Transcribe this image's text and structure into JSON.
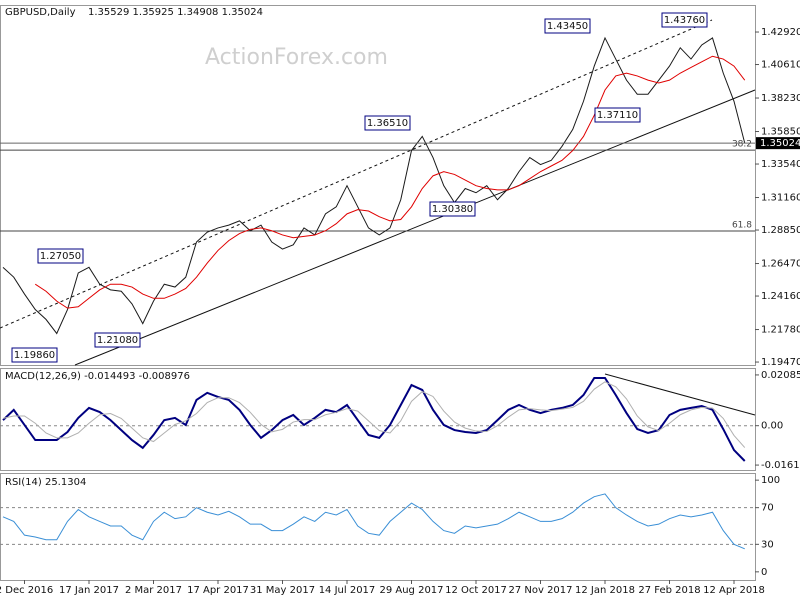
{
  "watermark": "ActionForex.com",
  "chart_data": [
    {
      "type": "line",
      "title": "GBPUSD,Daily",
      "subtitle": "1.35529 1.35925 1.34908 1.35024",
      "ylim": [
        1.1926,
        1.4484
      ],
      "yticks": [
        {
          "value": 1.4292,
          "label": "1.42920"
        },
        {
          "value": 1.4061,
          "label": "1.40610"
        },
        {
          "value": 1.3823,
          "label": "1.38230"
        },
        {
          "value": 1.3585,
          "label": "1.35850"
        },
        {
          "value": 1.3354,
          "label": "1.33540"
        },
        {
          "value": 1.3116,
          "label": "1.31160"
        },
        {
          "value": 1.2885,
          "label": "1.28850"
        },
        {
          "value": 1.2647,
          "label": "1.26470"
        },
        {
          "value": 1.2416,
          "label": "1.24160"
        },
        {
          "value": 1.2178,
          "label": "1.21780"
        },
        {
          "value": 1.1947,
          "label": "1.19470"
        }
      ],
      "series": [
        {
          "color": "#1a1a1a",
          "values": [
            1.262,
            1.255,
            1.243,
            1.232,
            1.225,
            1.215,
            1.232,
            1.258,
            1.262,
            1.25,
            1.246,
            1.245,
            1.236,
            1.222,
            1.238,
            1.25,
            1.248,
            1.255,
            1.28,
            1.287,
            1.29,
            1.292,
            1.295,
            1.288,
            1.292,
            1.28,
            1.275,
            1.278,
            1.29,
            1.285,
            1.3,
            1.305,
            1.32,
            1.305,
            1.29,
            1.285,
            1.29,
            1.31,
            1.345,
            1.355,
            1.34,
            1.32,
            1.308,
            1.318,
            1.315,
            1.32,
            1.31,
            1.318,
            1.33,
            1.34,
            1.335,
            1.338,
            1.348,
            1.36,
            1.38,
            1.405,
            1.425,
            1.41,
            1.395,
            1.385,
            1.385,
            1.395,
            1.405,
            1.418,
            1.41,
            1.42,
            1.425,
            1.4,
            1.38,
            1.35024
          ]
        },
        {
          "color": "#e00000",
          "values": [
            null,
            null,
            null,
            1.25,
            1.245,
            1.238,
            1.233,
            1.234,
            1.24,
            1.246,
            1.25,
            1.25,
            1.248,
            1.243,
            1.24,
            1.24,
            1.243,
            1.247,
            1.255,
            1.265,
            1.274,
            1.281,
            1.286,
            1.289,
            1.29,
            1.288,
            1.285,
            1.283,
            1.284,
            1.285,
            1.288,
            1.293,
            1.3,
            1.303,
            1.302,
            1.298,
            1.295,
            1.296,
            1.305,
            1.318,
            1.327,
            1.33,
            1.328,
            1.324,
            1.32,
            1.318,
            1.317,
            1.317,
            1.32,
            1.325,
            1.33,
            1.334,
            1.338,
            1.345,
            1.355,
            1.37,
            1.388,
            1.398,
            1.4,
            1.398,
            1.395,
            1.393,
            1.395,
            1.4,
            1.404,
            1.408,
            1.412,
            1.41,
            1.405,
            1.395
          ]
        }
      ],
      "levels": [
        {
          "value": 1.3453,
          "label": "38.2"
        },
        {
          "value": 1.2878,
          "label": "61.8"
        }
      ],
      "last_price": {
        "value": 1.35024,
        "label": "1.35024"
      },
      "annotations": [
        "1.19860",
        "1.27050",
        "1.21080",
        "1.36510",
        "1.30380",
        "1.43450",
        "1.37110",
        "1.43760"
      ]
    },
    {
      "type": "line",
      "title": "MACD(12,26,9) -0.014493 -0.008976",
      "ylim": [
        -0.0182,
        0.0237
      ],
      "yticks": [
        0.020852,
        {
          "value": 0,
          "label": "0.00"
        },
        -0.016176
      ],
      "grid_levels": [
        0
      ],
      "series": [
        {
          "color": "#000080",
          "values": [
            0.0023,
            0.0065,
            0.0003,
            -0.0059,
            -0.0059,
            -0.0059,
            -0.0026,
            0.0032,
            0.0073,
            0.0056,
            0.0023,
            -0.0018,
            -0.0059,
            -0.0091,
            -0.0038,
            0.0023,
            0.0032,
            0.0003,
            0.0106,
            0.0135,
            0.0118,
            0.0106,
            0.0065,
            0.0003,
            -0.005,
            -0.0018,
            0.0023,
            0.0044,
            0.0003,
            0.0032,
            0.0065,
            0.0056,
            0.0085,
            0.0023,
            -0.0038,
            -0.005,
            0.0003,
            0.0085,
            0.0167,
            0.0147,
            0.0065,
            0.0003,
            -0.0018,
            -0.0026,
            -0.003,
            -0.0018,
            0.0023,
            0.0065,
            0.0085,
            0.0065,
            0.0052,
            0.0065,
            0.0073,
            0.0085,
            0.0126,
            0.0196,
            0.0196,
            0.0126,
            0.0052,
            -0.0014,
            -0.003,
            -0.0018,
            0.0044,
            0.0065,
            0.0073,
            0.0081,
            0.0065,
            -0.0014,
            -0.01,
            -0.0145
          ]
        },
        {
          "color": "#b0b0b0",
          "values": [
            0.003,
            0.004,
            0.004,
            0.001,
            -0.003,
            -0.005,
            -0.005,
            -0.003,
            0.001,
            0.0045,
            0.005,
            0.003,
            -0.001,
            -0.005,
            -0.0065,
            -0.003,
            0.0005,
            0.002,
            0.005,
            0.0095,
            0.0115,
            0.0115,
            0.0095,
            0.0055,
            0.0005,
            -0.0025,
            -0.0015,
            0.0015,
            0.0025,
            0.0025,
            0.0045,
            0.0055,
            0.007,
            0.006,
            0.002,
            -0.002,
            -0.003,
            0.002,
            0.01,
            0.014,
            0.012,
            0.006,
            0.0015,
            -0.001,
            -0.0022,
            -0.0024,
            0.0,
            0.0035,
            0.0065,
            0.007,
            0.0065,
            0.0062,
            0.0068,
            0.0075,
            0.01,
            0.015,
            0.018,
            0.016,
            0.011,
            0.004,
            -0.0005,
            -0.002,
            0.001,
            0.0045,
            0.0065,
            0.0075,
            0.0072,
            0.003,
            -0.004,
            -0.009
          ]
        }
      ]
    },
    {
      "type": "line",
      "title": "RSI(14) 25.1304",
      "ylim": [
        -8.9,
        107.8
      ],
      "yticks": [
        100,
        70,
        30,
        0
      ],
      "grid_levels": [
        70,
        30
      ],
      "categories": [
        null,
        null,
        "2 Dec 2016",
        null,
        null,
        null,
        null,
        null,
        "17 Jan 2017",
        null,
        null,
        null,
        null,
        null,
        "2 Mar 2017",
        null,
        null,
        null,
        null,
        null,
        "17 Apr 2017",
        null,
        null,
        null,
        null,
        null,
        "31 May 2017",
        null,
        null,
        null,
        null,
        null,
        "14 Jul 2017",
        null,
        null,
        null,
        null,
        null,
        "29 Aug 2017",
        null,
        null,
        null,
        null,
        null,
        "12 Oct 2017",
        null,
        null,
        null,
        null,
        null,
        "27 Nov 2017",
        null,
        null,
        null,
        null,
        null,
        "12 Jan 2018",
        null,
        null,
        null,
        null,
        null,
        "27 Feb 2018",
        null,
        null,
        null,
        null,
        null,
        "12 Apr 2018",
        null
      ],
      "series": [
        {
          "color": "#3a8fd6",
          "values": [
            60,
            55,
            40,
            38,
            35,
            35,
            55,
            68,
            60,
            55,
            50,
            50,
            40,
            35,
            55,
            65,
            58,
            60,
            70,
            65,
            62,
            66,
            60,
            52,
            52,
            45,
            45,
            52,
            60,
            55,
            65,
            62,
            68,
            50,
            42,
            40,
            55,
            65,
            75,
            68,
            55,
            45,
            42,
            50,
            48,
            50,
            52,
            58,
            65,
            60,
            55,
            55,
            58,
            65,
            75,
            82,
            85,
            70,
            62,
            55,
            50,
            52,
            58,
            62,
            60,
            62,
            65,
            45,
            30,
            25.13
          ]
        }
      ]
    }
  ]
}
